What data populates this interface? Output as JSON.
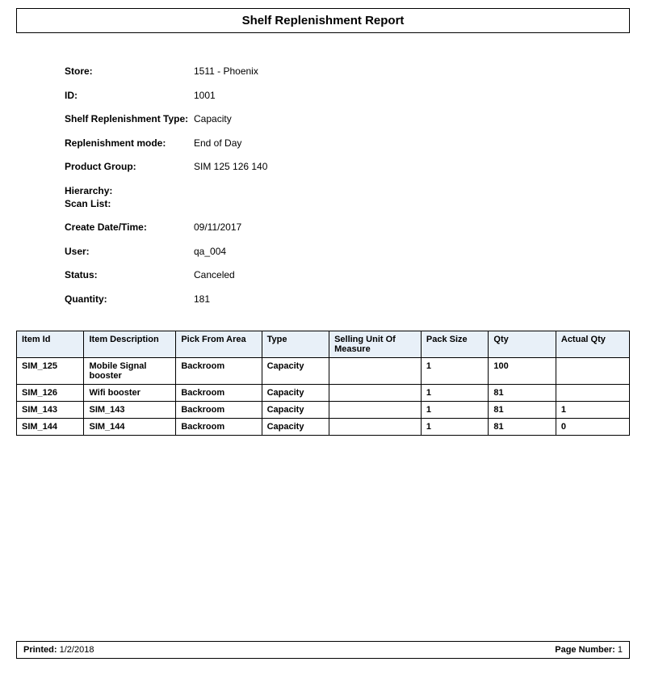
{
  "title": "Shelf Replenishment Report",
  "info": {
    "store_label": "Store:",
    "store_value": "1511 - Phoenix",
    "id_label": "ID:",
    "id_value": "1001",
    "type_label": "Shelf Replenishment Type:",
    "type_value": "Capacity",
    "mode_label": "Replenishment mode:",
    "mode_value": "End of Day",
    "group_label": "Product Group:",
    "group_value": "SIM 125 126 140",
    "hierarchy_label": "Hierarchy:\nScan List:",
    "hierarchy_value": "",
    "created_label": "Create Date/Time:",
    "created_value": "09/11/2017",
    "user_label": "User:",
    "user_value": "qa_004",
    "status_label": "Status:",
    "status_value": "Canceled",
    "qty_label": "Quantity:",
    "qty_value": "181"
  },
  "table": {
    "columns": [
      "Item Id",
      "Item Description",
      "Pick From Area",
      "Type",
      "Selling Unit Of Measure",
      "Pack Size",
      "Qty",
      "Actual Qty"
    ],
    "col_widths": [
      "11%",
      "15%",
      "14%",
      "11%",
      "15%",
      "11%",
      "11%",
      "12%"
    ],
    "header_bg": "#e8f0f8",
    "rows": [
      [
        "SIM_125",
        "Mobile Signal booster",
        "Backroom",
        "Capacity",
        "",
        "1",
        "100",
        ""
      ],
      [
        "SIM_126",
        "Wifi booster",
        "Backroom",
        "Capacity",
        "",
        "1",
        "81",
        ""
      ],
      [
        "SIM_143",
        "SIM_143",
        "Backroom",
        "Capacity",
        "",
        "1",
        "81",
        "1"
      ],
      [
        "SIM_144",
        "SIM_144",
        "Backroom",
        "Capacity",
        "",
        "1",
        "81",
        "0"
      ]
    ]
  },
  "footer": {
    "printed_label": "Printed:",
    "printed_value": "1/2/2018",
    "page_label": "Page Number:",
    "page_value": "1"
  }
}
